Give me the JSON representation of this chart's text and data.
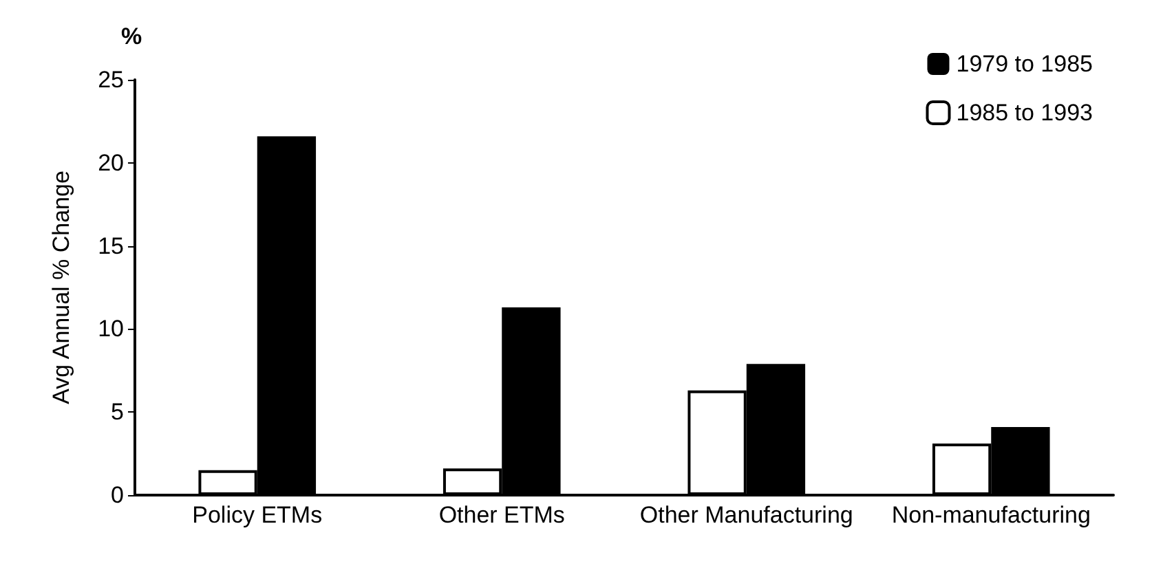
{
  "chart_data": {
    "type": "bar",
    "ylabel": "Avg Annual % Change",
    "annotations": [
      "%"
    ],
    "categories": [
      "Policy ETMs",
      "Other ETMs",
      "Other Manufacturing",
      "Non-manufacturing"
    ],
    "series": [
      {
        "name": "1985 to 1993",
        "color": "#ffffff",
        "values": [
          1.5,
          1.6,
          6.3,
          3.1
        ]
      },
      {
        "name": "1979 to 1985",
        "color": "#000000",
        "values": [
          21.6,
          11.3,
          7.9,
          4.1
        ]
      }
    ],
    "ylim": [
      0,
      25
    ],
    "yticks": [
      0,
      5,
      10,
      15,
      20,
      25
    ],
    "grid": false,
    "legend": "top right"
  }
}
